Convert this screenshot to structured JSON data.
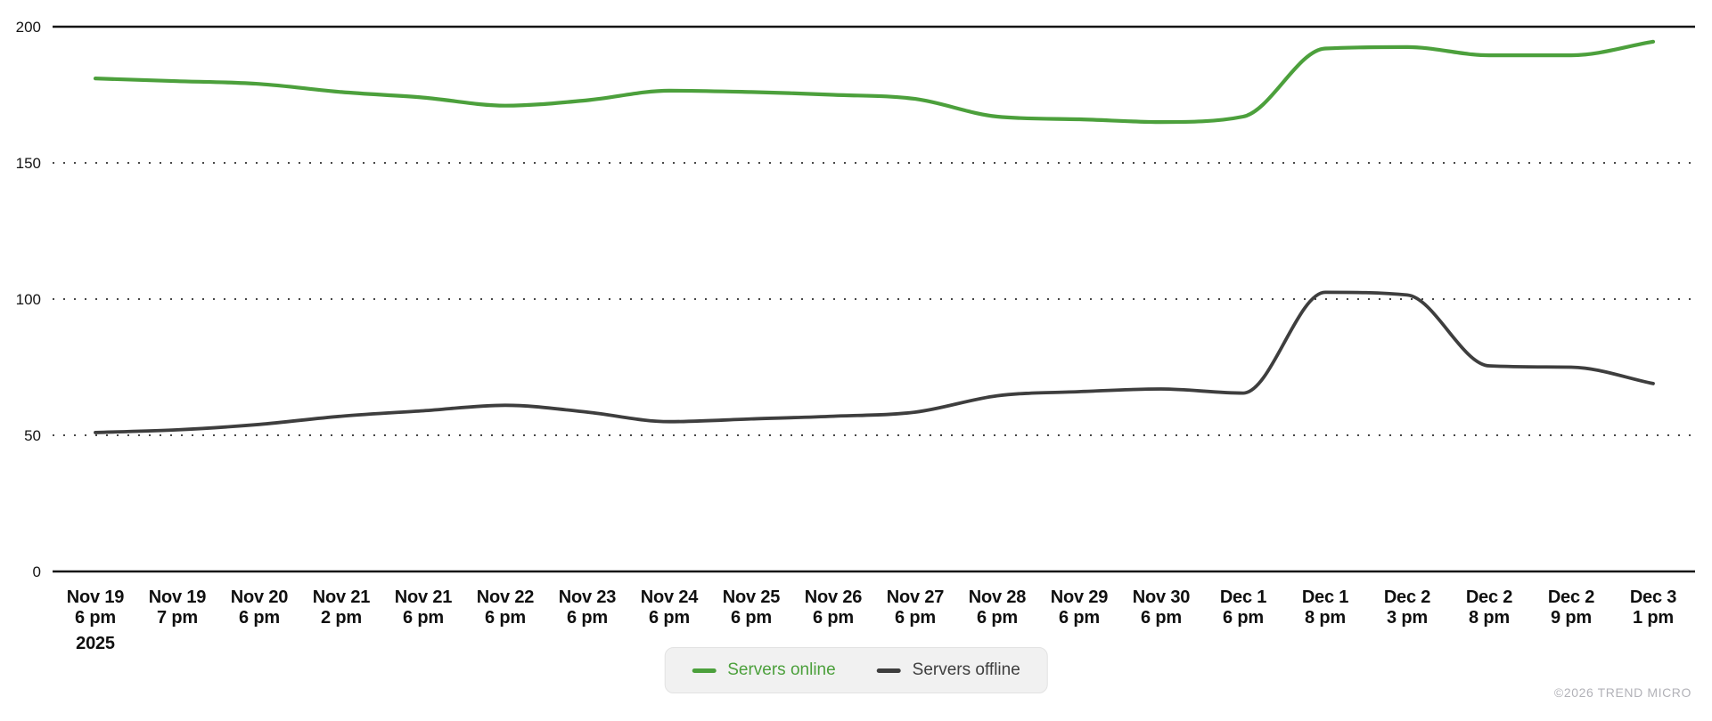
{
  "page": {
    "background_color": "#ffffff"
  },
  "legend": {
    "items": [
      {
        "label": "Servers online",
        "color": "#4ca03c"
      },
      {
        "label": "Servers offline",
        "color": "#3e3e3e"
      }
    ]
  },
  "footer": {
    "copyright": "©2026 TREND MICRO"
  },
  "chart_data": {
    "type": "line",
    "title": "",
    "xlabel": "",
    "ylabel": "",
    "ylim": [
      0,
      200
    ],
    "y_ticks": [
      0,
      50,
      100,
      150,
      200
    ],
    "grid": "horizontal dotted at 50/100/150, solid boundary lines at 0 and 200",
    "legend_position": "bottom-center",
    "year_label": "2025",
    "categories": [
      "Nov 19 6 pm",
      "Nov 19 7 pm",
      "Nov 20 6 pm",
      "Nov 21 2 pm",
      "Nov 21 6 pm",
      "Nov 22 6 pm",
      "Nov 23 6 pm",
      "Nov 24 6 pm",
      "Nov 25 6 pm",
      "Nov 26 6 pm",
      "Nov 27 6 pm",
      "Nov 28 6 pm",
      "Nov 29 6 pm",
      "Nov 30 6 pm",
      "Dec 1 6 pm",
      "Dec 1 8 pm",
      "Dec 2 3 pm",
      "Dec 2 8 pm",
      "Dec 2 9 pm",
      "Dec 3 1 pm"
    ],
    "x_tick_lines": [
      [
        "Nov 19",
        "6 pm"
      ],
      [
        "Nov 19",
        "7 pm"
      ],
      [
        "Nov 20",
        "6 pm"
      ],
      [
        "Nov 21",
        "2 pm"
      ],
      [
        "Nov 21",
        "6 pm"
      ],
      [
        "Nov 22",
        "6 pm"
      ],
      [
        "Nov 23",
        "6 pm"
      ],
      [
        "Nov 24",
        "6 pm"
      ],
      [
        "Nov 25",
        "6 pm"
      ],
      [
        "Nov 26",
        "6 pm"
      ],
      [
        "Nov 27",
        "6 pm"
      ],
      [
        "Nov 28",
        "6 pm"
      ],
      [
        "Nov 29",
        "6 pm"
      ],
      [
        "Nov 30",
        "6 pm"
      ],
      [
        "Dec 1",
        "6 pm"
      ],
      [
        "Dec 1",
        "8 pm"
      ],
      [
        "Dec 2",
        "3 pm"
      ],
      [
        "Dec 2",
        "8 pm"
      ],
      [
        "Dec 2",
        "9 pm"
      ],
      [
        "Dec 3",
        "1 pm"
      ]
    ],
    "series": [
      {
        "name": "Servers online",
        "color": "#4ca03c",
        "values": [
          181,
          180,
          179,
          176,
          174,
          171,
          173,
          176.5,
          176,
          175,
          173.5,
          167,
          166,
          165,
          167,
          192,
          192.5,
          189.5,
          189.5,
          194.5
        ]
      },
      {
        "name": "Servers offline",
        "color": "#3e3e3e",
        "values": [
          51,
          52,
          54,
          57,
          59,
          61,
          58.5,
          55,
          56,
          57,
          58.5,
          64.5,
          66,
          67,
          65.5,
          102.5,
          101.5,
          75.5,
          75,
          69
        ]
      }
    ]
  }
}
